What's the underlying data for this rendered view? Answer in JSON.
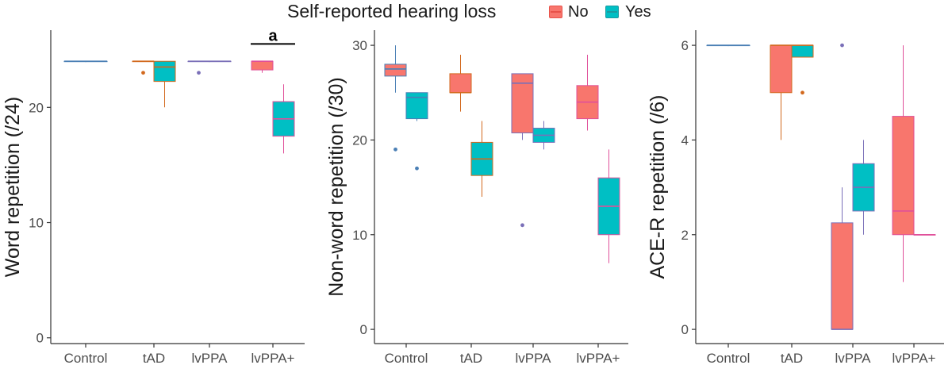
{
  "legend": {
    "title": "Self-reported hearing loss",
    "items": [
      {
        "label": "No",
        "fill": "#F8766D",
        "edge": "#e8524a"
      },
      {
        "label": "Yes",
        "fill": "#00BFC4",
        "edge": "#1c9aa0"
      }
    ]
  },
  "colors": {
    "no_fill": "#F8766D",
    "yes_fill": "#00BFC4",
    "control_line": "#4a7fb5",
    "tad_line": "#d2691e",
    "lvppa_line": "#7a6fb8",
    "lvppa_plus_line": "#e0509a",
    "axis": "#333333"
  },
  "chart_data": [
    {
      "type": "box",
      "title": "",
      "xlabel": "",
      "ylabel": "Word repetition (/24)",
      "ylim": [
        -0.5,
        26.7
      ],
      "yticks": [
        0,
        10,
        20
      ],
      "categories": [
        "Control",
        "tAD",
        "lvPPA",
        "lvPPA+"
      ],
      "series": [
        {
          "name": "No",
          "boxes": [
            {
              "category": "Control",
              "min": 24,
              "q1": 24,
              "median": 24,
              "q3": 24,
              "max": 24,
              "outliers": []
            },
            {
              "category": "tAD",
              "min": 24,
              "q1": 24,
              "median": 24,
              "q3": 24,
              "max": 24,
              "outliers": [
                23
              ]
            },
            {
              "category": "lvPPA",
              "min": 24,
              "q1": 24,
              "median": 24,
              "q3": 24,
              "max": 24,
              "outliers": [
                23
              ]
            },
            {
              "category": "lvPPA+",
              "min": 23,
              "q1": 23.25,
              "median": 24,
              "q3": 24,
              "max": 24,
              "outliers": []
            }
          ]
        },
        {
          "name": "Yes",
          "boxes": [
            {
              "category": "Control",
              "min": 24,
              "q1": 24,
              "median": 24,
              "q3": 24,
              "max": 24,
              "outliers": []
            },
            {
              "category": "tAD",
              "min": 20,
              "q1": 22.25,
              "median": 23.5,
              "q3": 24,
              "max": 24,
              "outliers": []
            },
            {
              "category": "lvPPA",
              "min": 24,
              "q1": 24,
              "median": 24,
              "q3": 24,
              "max": 24,
              "outliers": []
            },
            {
              "category": "lvPPA+",
              "min": 16,
              "q1": 17.5,
              "median": 19,
              "q3": 20.5,
              "max": 22,
              "outliers": []
            }
          ]
        }
      ],
      "annotations": [
        {
          "text": "a",
          "category": "lvPPA+",
          "y": 25.5
        }
      ]
    },
    {
      "type": "box",
      "title": "",
      "xlabel": "",
      "ylabel": "Non-word repetition (/30)",
      "ylim": [
        -1.5,
        31.6
      ],
      "yticks": [
        0,
        10,
        20,
        30
      ],
      "categories": [
        "Control",
        "tAD",
        "lvPPA",
        "lvPPA+"
      ],
      "series": [
        {
          "name": "No",
          "boxes": [
            {
              "category": "Control",
              "min": 25,
              "q1": 26.75,
              "median": 27.5,
              "q3": 28,
              "max": 30,
              "outliers": [
                19
              ]
            },
            {
              "category": "tAD",
              "min": 23,
              "q1": 25,
              "median": 25,
              "q3": 27,
              "max": 29,
              "outliers": []
            },
            {
              "category": "lvPPA",
              "min": 20,
              "q1": 20.75,
              "median": 26,
              "q3": 27,
              "max": 27,
              "outliers": [
                11
              ]
            },
            {
              "category": "lvPPA+",
              "min": 21,
              "q1": 22.25,
              "median": 24,
              "q3": 25.75,
              "max": 29,
              "outliers": []
            }
          ]
        },
        {
          "name": "Yes",
          "boxes": [
            {
              "category": "Control",
              "min": 22,
              "q1": 22.25,
              "median": 24.5,
              "q3": 25,
              "max": 25,
              "outliers": [
                17
              ]
            },
            {
              "category": "tAD",
              "min": 14,
              "q1": 16.25,
              "median": 18,
              "q3": 19.75,
              "max": 22,
              "outliers": []
            },
            {
              "category": "lvPPA",
              "min": 19,
              "q1": 19.75,
              "median": 20.5,
              "q3": 21.25,
              "max": 22,
              "outliers": []
            },
            {
              "category": "lvPPA+",
              "min": 7,
              "q1": 10,
              "median": 13,
              "q3": 16,
              "max": 19,
              "outliers": []
            }
          ]
        }
      ],
      "annotations": []
    },
    {
      "type": "box",
      "title": "",
      "xlabel": "",
      "ylabel": "ACE-R repetition (/6)",
      "ylim": [
        -0.3,
        6.32
      ],
      "yticks": [
        0,
        2,
        4,
        6
      ],
      "categories": [
        "Control",
        "tAD",
        "lvPPA",
        "lvPPA+"
      ],
      "series": [
        {
          "name": "No",
          "boxes": [
            {
              "category": "Control",
              "min": 6,
              "q1": 6,
              "median": 6,
              "q3": 6,
              "max": 6,
              "outliers": []
            },
            {
              "category": "tAD",
              "min": 4,
              "q1": 5,
              "median": 6,
              "q3": 6,
              "max": 6,
              "outliers": []
            },
            {
              "category": "lvPPA",
              "min": 0,
              "q1": 0,
              "median": 0,
              "q3": 2.25,
              "max": 3,
              "outliers": [
                6
              ]
            },
            {
              "category": "lvPPA+",
              "min": 1,
              "q1": 2,
              "median": 2.5,
              "q3": 4.5,
              "max": 6,
              "outliers": []
            }
          ]
        },
        {
          "name": "Yes",
          "boxes": [
            {
              "category": "Control",
              "min": 6,
              "q1": 6,
              "median": 6,
              "q3": 6,
              "max": 6,
              "outliers": []
            },
            {
              "category": "tAD",
              "min": 5.75,
              "q1": 5.75,
              "median": 6,
              "q3": 6,
              "max": 6,
              "outliers": [
                5
              ]
            },
            {
              "category": "lvPPA",
              "min": 2,
              "q1": 2.5,
              "median": 3,
              "q3": 3.5,
              "max": 4,
              "outliers": []
            },
            {
              "category": "lvPPA+",
              "min": 2,
              "q1": 2,
              "median": 2,
              "q3": 2,
              "max": 2,
              "outliers": []
            }
          ]
        }
      ],
      "annotations": []
    }
  ]
}
